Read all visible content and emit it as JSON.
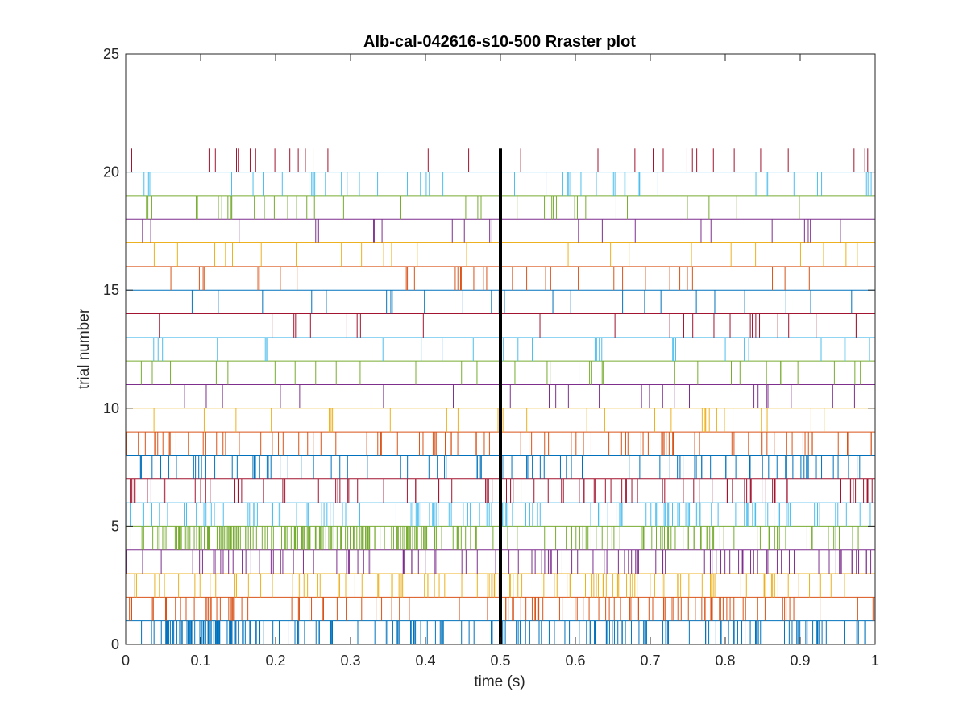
{
  "chart_data": {
    "type": "raster",
    "title": "Alb-cal-042616-s10-500 Rraster plot",
    "xlabel": "time (s)",
    "ylabel": "trial number",
    "xlim": [
      0,
      1
    ],
    "ylim": [
      0,
      25
    ],
    "xticks": [
      0,
      0.1,
      0.2,
      0.3,
      0.4,
      0.5,
      0.6,
      0.7,
      0.8,
      0.9,
      1
    ],
    "xtick_labels": [
      "0",
      "0.1",
      "0.2",
      "0.3",
      "0.4",
      "0.5",
      "0.6",
      "0.7",
      "0.8",
      "0.9",
      "1"
    ],
    "yticks": [
      0,
      5,
      10,
      15,
      20,
      25
    ],
    "ytick_labels": [
      "0",
      "5",
      "10",
      "15",
      "20",
      "25"
    ],
    "grid": false,
    "legend": "none",
    "event_marker": {
      "x": 0.5,
      "y_range": [
        0,
        21
      ],
      "color": "#000000"
    },
    "trial_colors": [
      "#0072BD",
      "#D95319",
      "#EDB120",
      "#7E2F8E",
      "#77AC30",
      "#4DBEEE",
      "#A2142F"
    ],
    "trials": [
      {
        "trial": 1,
        "spikes_per_second": 150,
        "burst": {
          "start": 0.05,
          "end": 0.16,
          "extra_spikes": 50
        }
      },
      {
        "trial": 2,
        "spikes_per_second": 115
      },
      {
        "trial": 3,
        "spikes_per_second": 110
      },
      {
        "trial": 4,
        "spikes_per_second": 110
      },
      {
        "trial": 5,
        "spikes_per_second": 125,
        "burst": {
          "start": 0.05,
          "end": 0.45,
          "extra_spikes": 130
        }
      },
      {
        "trial": 6,
        "spikes_per_second": 130
      },
      {
        "trial": 7,
        "spikes_per_second": 90
      },
      {
        "trial": 8,
        "spikes_per_second": 95
      },
      {
        "trial": 9,
        "spikes_per_second": 95
      },
      {
        "trial": 10,
        "spikes_per_second": 28
      },
      {
        "trial": 11,
        "spikes_per_second": 24
      },
      {
        "trial": 12,
        "spikes_per_second": 32
      },
      {
        "trial": 13,
        "spikes_per_second": 30
      },
      {
        "trial": 14,
        "spikes_per_second": 25
      },
      {
        "trial": 15,
        "spikes_per_second": 26
      },
      {
        "trial": 16,
        "spikes_per_second": 34
      },
      {
        "trial": 17,
        "spikes_per_second": 24
      },
      {
        "trial": 18,
        "spikes_per_second": 22
      },
      {
        "trial": 19,
        "spikes_per_second": 36
      },
      {
        "trial": 20,
        "spikes_per_second": 46
      },
      {
        "trial": 21,
        "spikes_per_second": 32
      }
    ]
  }
}
